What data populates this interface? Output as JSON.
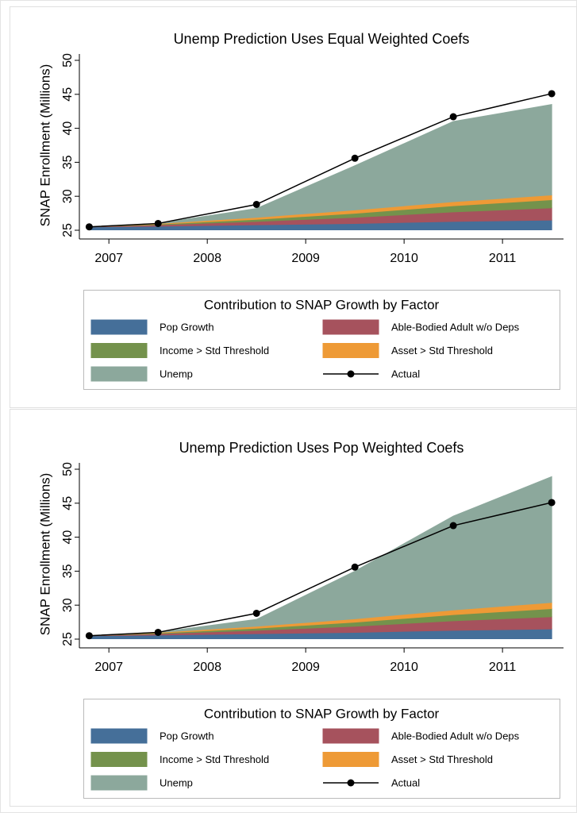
{
  "chart_data": [
    {
      "type": "area",
      "title": "Unemp Prediction Uses Equal Weighted Coefs",
      "ylabel": "SNAP Enrollment (Millions)",
      "x": [
        2006.8,
        2007.5,
        2008.5,
        2009.5,
        2010.5,
        2011.5
      ],
      "xlim": [
        2006.7,
        2011.62
      ],
      "xticks": [
        2007,
        2008,
        2009,
        2010,
        2011
      ],
      "ylim": [
        25,
        50
      ],
      "yticks": [
        25,
        30,
        35,
        40,
        45,
        50
      ],
      "legend_title": "Contribution to SNAP Growth by Factor",
      "series": [
        {
          "name": "Pop Growth",
          "color": "#456f99",
          "values": [
            25.5,
            25.6,
            25.8,
            26.0,
            26.3,
            26.5
          ]
        },
        {
          "name": "Able-Bodied Adult w/o Deps",
          "color": "#a6525d",
          "values": [
            0,
            0.2,
            0.5,
            0.9,
            1.4,
            1.8
          ]
        },
        {
          "name": "Income > Std Threshold",
          "color": "#74924c",
          "values": [
            0,
            0.1,
            0.3,
            0.6,
            0.9,
            1.2
          ]
        },
        {
          "name": "Asset > Std Threshold",
          "color": "#ee9a36",
          "values": [
            0,
            0.1,
            0.3,
            0.5,
            0.6,
            0.7
          ]
        },
        {
          "name": "Unemp",
          "color": "#8ca89c",
          "values": [
            0,
            0,
            1.3,
            6.5,
            11.8,
            13.3
          ]
        }
      ],
      "line": {
        "name": "Actual",
        "color": "#000000",
        "values": [
          25.5,
          26.0,
          28.8,
          35.6,
          41.7,
          45.1
        ]
      }
    },
    {
      "type": "area",
      "title": "Unemp Prediction Uses Pop Weighted Coefs",
      "ylabel": "SNAP Enrollment (Millions)",
      "x": [
        2006.8,
        2007.5,
        2008.5,
        2009.5,
        2010.5,
        2011.5
      ],
      "xlim": [
        2006.7,
        2011.62
      ],
      "xticks": [
        2007,
        2008,
        2009,
        2010,
        2011
      ],
      "ylim": [
        25,
        50
      ],
      "yticks": [
        25,
        30,
        35,
        40,
        45,
        50
      ],
      "legend_title": "Contribution to SNAP Growth by Factor",
      "series": [
        {
          "name": "Pop Growth",
          "color": "#456f99",
          "values": [
            25.5,
            25.6,
            25.8,
            26.0,
            26.3,
            26.5
          ]
        },
        {
          "name": "Able-Bodied Adult w/o Deps",
          "color": "#a6525d",
          "values": [
            0,
            0.2,
            0.5,
            0.9,
            1.4,
            1.8
          ]
        },
        {
          "name": "Income > Std Threshold",
          "color": "#74924c",
          "values": [
            0,
            0.1,
            0.3,
            0.6,
            0.9,
            1.2
          ]
        },
        {
          "name": "Asset > Std Threshold",
          "color": "#ee9a36",
          "values": [
            0,
            0.1,
            0.3,
            0.5,
            0.7,
            0.9
          ]
        },
        {
          "name": "Unemp",
          "color": "#8ca89c",
          "values": [
            0,
            0,
            1.0,
            7.0,
            13.8,
            18.5
          ]
        }
      ],
      "line": {
        "name": "Actual",
        "color": "#000000",
        "values": [
          25.5,
          26.0,
          28.8,
          35.6,
          41.7,
          45.1
        ]
      }
    }
  ]
}
